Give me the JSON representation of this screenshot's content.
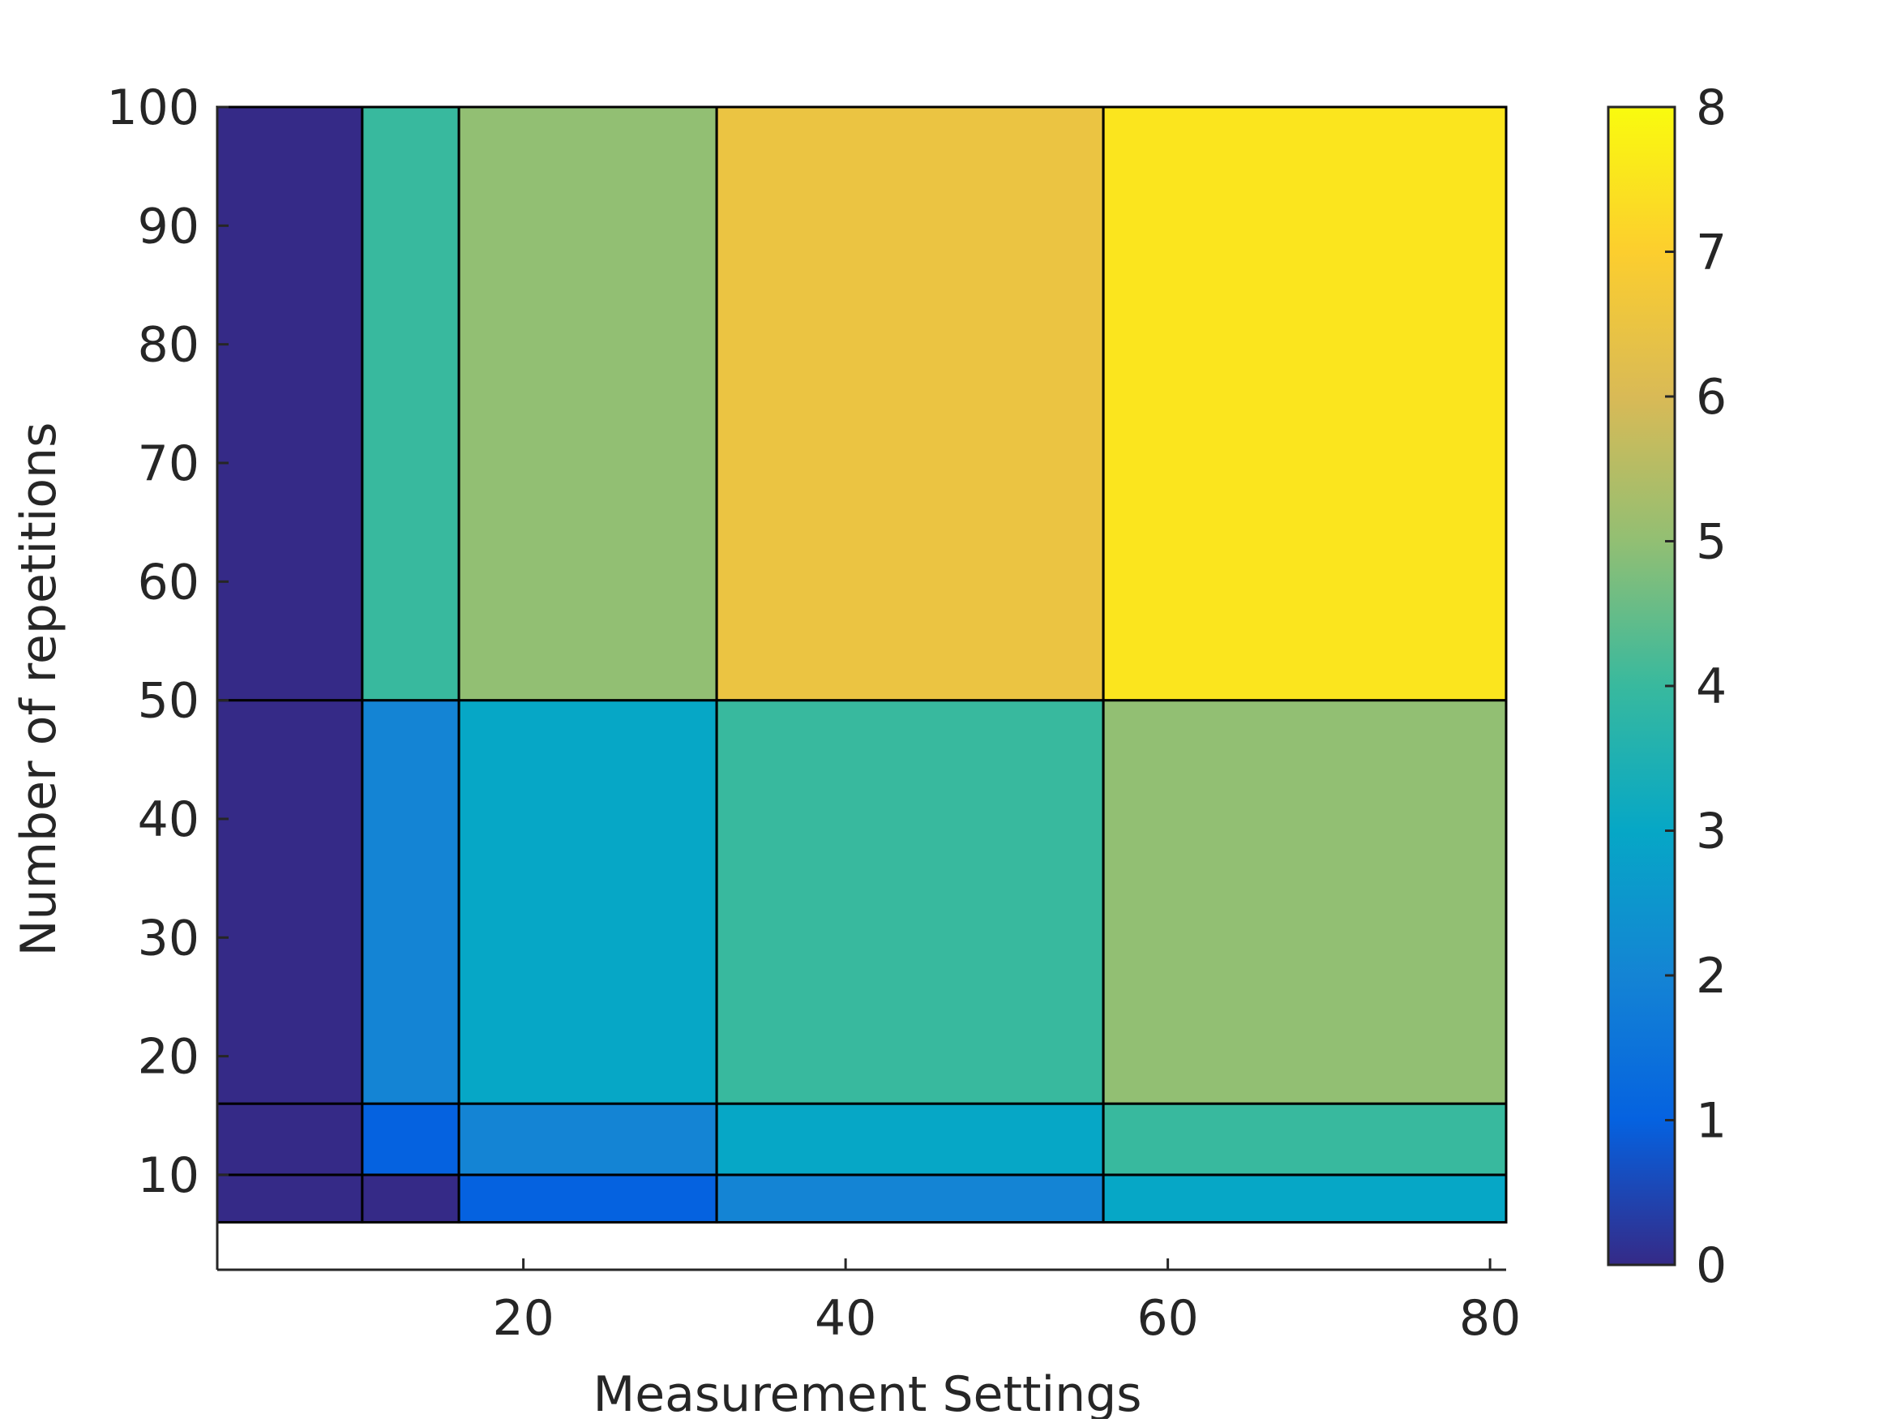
{
  "chart_data": {
    "type": "heatmap",
    "title": "",
    "xlabel": "Measurement Settings",
    "ylabel": "Number of repetitions",
    "xlim": [
      1,
      81
    ],
    "ylim": [
      2,
      100
    ],
    "x_ticks": [
      20,
      40,
      60,
      80
    ],
    "y_ticks": [
      10,
      20,
      30,
      40,
      50,
      60,
      70,
      80,
      90,
      100
    ],
    "colorbar": {
      "min": 0,
      "max": 8,
      "ticks": [
        0,
        1,
        2,
        3,
        4,
        5,
        6,
        7,
        8
      ],
      "colormap": "parula"
    },
    "x_edges": [
      1,
      10,
      16,
      32,
      56,
      81
    ],
    "y_edges": [
      6,
      10,
      16,
      50,
      100
    ],
    "cells": [
      [
        0,
        0,
        1,
        2,
        3
      ],
      [
        0,
        1,
        2,
        3,
        4
      ],
      [
        0,
        2,
        3,
        4,
        5
      ],
      [
        0,
        4,
        5,
        6.5,
        7.5
      ]
    ],
    "grid": false
  }
}
